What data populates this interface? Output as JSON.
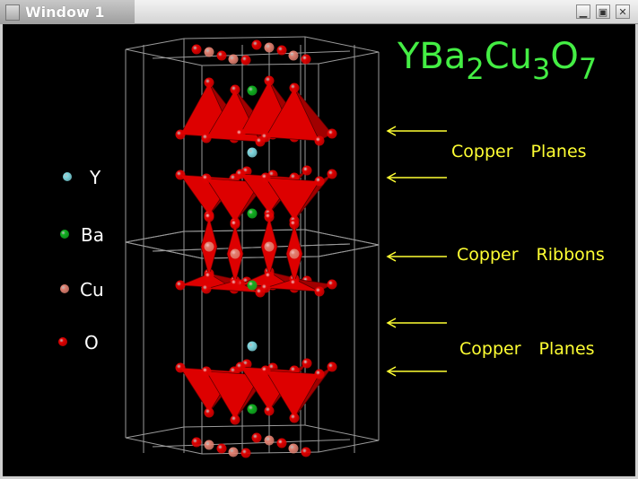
{
  "window": {
    "title": "Window 1",
    "buttons": [
      "minimize",
      "maximize",
      "close"
    ]
  },
  "formula": {
    "base1": "YBa",
    "sub1": "2",
    "base2": "Cu",
    "sub2": "3",
    "base3": "O",
    "sub3": "7",
    "color": "#44ee44"
  },
  "legend": [
    {
      "label": "Y",
      "color": "#7fd8e0"
    },
    {
      "label": "Ba",
      "color": "#10b020"
    },
    {
      "label": "Cu",
      "color": "#e08070"
    },
    {
      "label": "O",
      "color": "#e00000"
    }
  ],
  "annotations": [
    {
      "label": "Copper Planes"
    },
    {
      "label": "Copper Ribbons"
    },
    {
      "label": "Copper Planes"
    }
  ],
  "colors": {
    "polyhedra": "#dd0000",
    "arrows": "#ffff33",
    "cell_lines": "#9a9a9a"
  }
}
